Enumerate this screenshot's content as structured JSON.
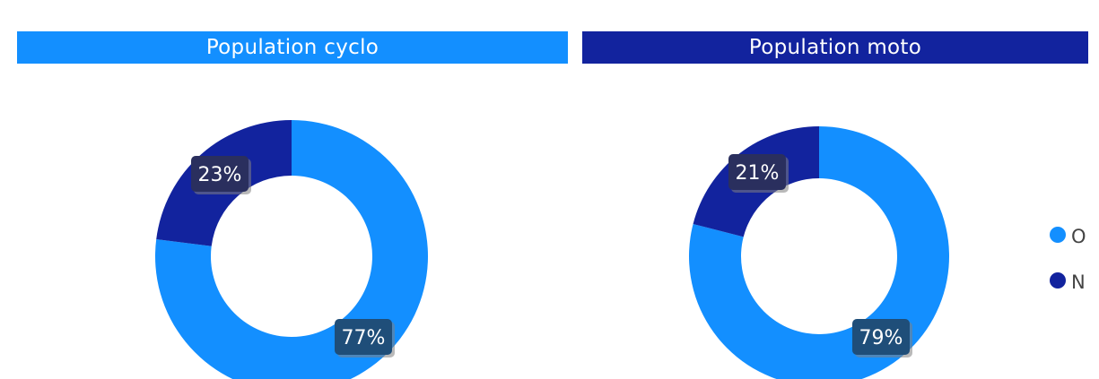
{
  "colors": {
    "O": "#138FFF",
    "N": "#12239E",
    "label_bg": "#1F4E79"
  },
  "legend": [
    {
      "label": "O",
      "color": "#138FFF"
    },
    {
      "label": "N",
      "color": "#12239E"
    }
  ],
  "chart_data": [
    {
      "type": "pie",
      "title": "Population cyclo",
      "title_bg": "#138FFF",
      "slices": [
        {
          "category": "O",
          "value": 77,
          "label": "77%"
        },
        {
          "category": "N",
          "value": 23,
          "label": "23%"
        }
      ]
    },
    {
      "type": "pie",
      "title": "Population moto",
      "title_bg": "#12239E",
      "slices": [
        {
          "category": "O",
          "value": 79,
          "label": "79%"
        },
        {
          "category": "N",
          "value": 21,
          "label": "21%"
        }
      ]
    }
  ]
}
